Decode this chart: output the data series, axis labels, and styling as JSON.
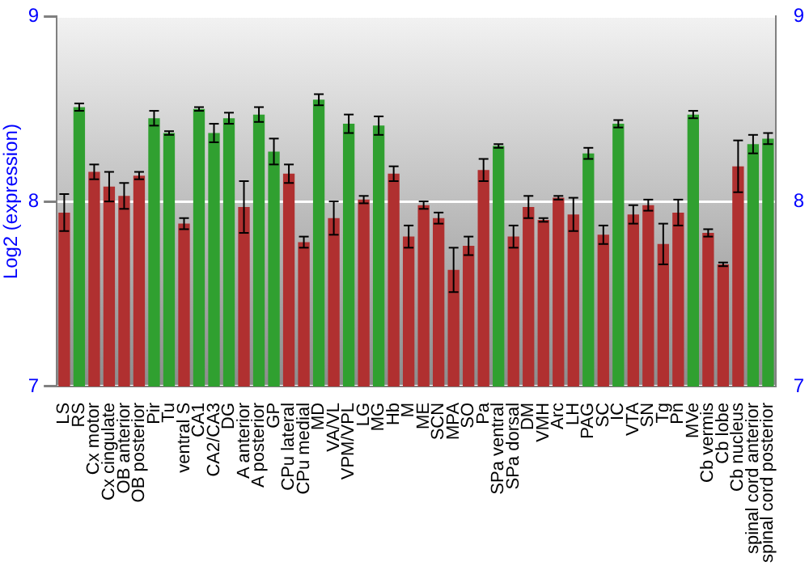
{
  "chart_data": {
    "type": "bar",
    "ylabel": "Log2 (expression)",
    "categories": [
      "LS",
      "RS",
      "Cx motor",
      "Cx cingulate",
      "OB anterior",
      "OB posterior",
      "Pir",
      "Tu",
      "ventral S",
      "CA1",
      "CA2/CA3",
      "DG",
      "A anterior",
      "A posterior",
      "GP",
      "CPu lateral",
      "CPu medial",
      "MD",
      "VA/VL",
      "VPM/VPL",
      "LG",
      "MG",
      "Hb",
      "M",
      "ME",
      "SCN",
      "MPA",
      "SO",
      "Pa",
      "SPa ventral",
      "SPa dorsal",
      "DM",
      "VMH",
      "Arc",
      "LH",
      "PAG",
      "SC",
      "IC",
      "VTA",
      "SN",
      "Tg",
      "Pn",
      "MVe",
      "Cb vermis",
      "Cb lobe",
      "Cb nucleus",
      "spinal cord anterior",
      "spinal cord posterior"
    ],
    "values": [
      7.94,
      8.51,
      8.16,
      8.08,
      8.03,
      8.14,
      8.45,
      8.37,
      7.88,
      8.5,
      8.37,
      8.45,
      7.97,
      8.47,
      8.27,
      8.15,
      7.78,
      8.55,
      7.91,
      8.42,
      8.01,
      8.41,
      8.15,
      7.81,
      7.98,
      7.91,
      7.63,
      7.76,
      8.17,
      8.3,
      7.81,
      7.97,
      7.9,
      8.02,
      7.93,
      8.26,
      7.82,
      8.42,
      7.93,
      7.98,
      7.77,
      7.94,
      8.47,
      7.83,
      7.66,
      8.19,
      8.31,
      8.34
    ],
    "errors": [
      0.1,
      0.02,
      0.04,
      0.08,
      0.07,
      0.02,
      0.04,
      0.01,
      0.03,
      0.01,
      0.05,
      0.03,
      0.14,
      0.04,
      0.07,
      0.05,
      0.03,
      0.03,
      0.09,
      0.05,
      0.02,
      0.05,
      0.04,
      0.06,
      0.02,
      0.03,
      0.12,
      0.05,
      0.06,
      0.01,
      0.06,
      0.06,
      0.01,
      0.01,
      0.09,
      0.03,
      0.05,
      0.02,
      0.05,
      0.03,
      0.11,
      0.07,
      0.02,
      0.02,
      0.01,
      0.14,
      0.05,
      0.03
    ],
    "colors": [
      "#b03030",
      "#30a030",
      "#b03030",
      "#b03030",
      "#b03030",
      "#b03030",
      "#30a030",
      "#30a030",
      "#b03030",
      "#30a030",
      "#30a030",
      "#30a030",
      "#b03030",
      "#30a030",
      "#30a030",
      "#b03030",
      "#b03030",
      "#30a030",
      "#b03030",
      "#30a030",
      "#b03030",
      "#30a030",
      "#b03030",
      "#b03030",
      "#b03030",
      "#b03030",
      "#b03030",
      "#b03030",
      "#b03030",
      "#30a030",
      "#b03030",
      "#b03030",
      "#b03030",
      "#b03030",
      "#b03030",
      "#30a030",
      "#b03030",
      "#30a030",
      "#b03030",
      "#b03030",
      "#b03030",
      "#b03030",
      "#30a030",
      "#b03030",
      "#b03030",
      "#b03030",
      "#30a030",
      "#30a030"
    ],
    "ylim": [
      7,
      9
    ],
    "yticks": [
      7,
      8,
      9
    ],
    "y2lim": [
      7,
      9
    ],
    "y2ticks": [
      7,
      8,
      9
    ],
    "grid": "y",
    "legend": false
  }
}
